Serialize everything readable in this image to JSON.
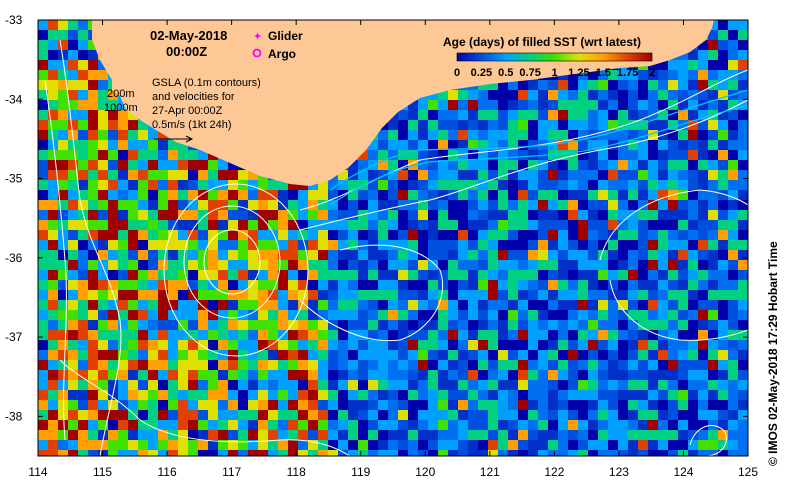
{
  "header": {
    "date": "02-May-2018",
    "time": "00:00Z"
  },
  "legend": {
    "glider_label": "Glider",
    "glider_color": "#ff00ff",
    "argo_label": "Argo",
    "argo_color": "#ff00ff",
    "depth_200": "200m",
    "depth_1000": "1000m"
  },
  "gsla_note": {
    "line1": "GSLA (0.1m contours)",
    "line2": "and velocities for",
    "line3": "27-Apr 00:00Z",
    "line4": "0.5m/s (1kt 24h)"
  },
  "colorbar": {
    "title": "Age (days) of filled SST (wrt latest)",
    "ticks": [
      "0",
      "0.25",
      "0.5",
      "0.75",
      "1",
      "1.25",
      "1.5",
      "1.75",
      "2"
    ],
    "range": [
      0,
      2
    ],
    "colors": [
      "#0000aa",
      "#0050e0",
      "#00a0ff",
      "#00d080",
      "#40e000",
      "#e0e000",
      "#ffa000",
      "#e04000",
      "#a00000"
    ]
  },
  "axes": {
    "x_ticks": [
      "114",
      "115",
      "116",
      "117",
      "118",
      "119",
      "120",
      "121",
      "122",
      "123",
      "124",
      "125"
    ],
    "y_ticks": [
      "-33",
      "-34",
      "-35",
      "-36",
      "-37",
      "-38"
    ],
    "lon_range": [
      114,
      125
    ],
    "lat_range": [
      -38.5,
      -33
    ]
  },
  "map": {
    "land_color": "#fdc896",
    "contour_color": "#ffffff",
    "isobath_color": "#00c8ff"
  },
  "credit": "© IMOS 02-May-2018 17:29 Hobart Time"
}
